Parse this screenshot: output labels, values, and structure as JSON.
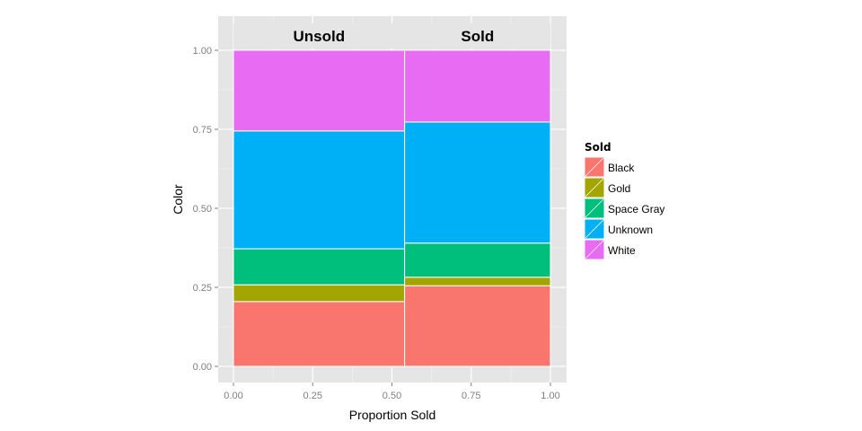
{
  "chart_data": {
    "type": "bar",
    "subtype": "mosaic",
    "xlabel": "Proportion Sold",
    "ylabel": "Color",
    "xlim": [
      0,
      1
    ],
    "ylim": [
      0,
      1
    ],
    "x_ticks": [
      "0.00",
      "0.25",
      "0.50",
      "0.75",
      "1.00"
    ],
    "y_ticks": [
      "0.00",
      "0.25",
      "0.50",
      "0.75",
      "1.00"
    ],
    "grid": true,
    "legend": {
      "title": "Sold",
      "position": "right"
    },
    "categories": [
      "Unsold",
      "Sold"
    ],
    "category_widths": [
      0.54,
      0.46
    ],
    "series": [
      {
        "name": "Black",
        "color": "#F8766D",
        "values": [
          0.205,
          0.255
        ]
      },
      {
        "name": "Gold",
        "color": "#A3A500",
        "values": [
          0.053,
          0.027
        ]
      },
      {
        "name": "Space Gray",
        "color": "#00BF7D",
        "values": [
          0.114,
          0.108
        ]
      },
      {
        "name": "Unknown",
        "color": "#00B0F6",
        "values": [
          0.373,
          0.383
        ]
      },
      {
        "name": "White",
        "color": "#E76BF3",
        "values": [
          0.255,
          0.227
        ]
      }
    ]
  }
}
